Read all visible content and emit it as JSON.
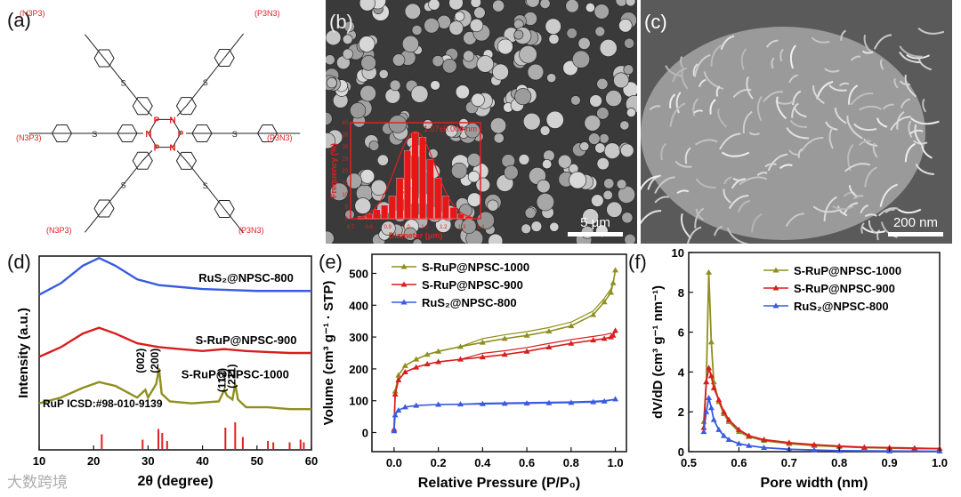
{
  "panels": {
    "a": "(a)",
    "b": "(b)",
    "c": "(c)",
    "d": "(d)",
    "e": "(e)",
    "f": "(f)"
  },
  "structure": {
    "n3p3": "(N",
    "p3n3": "(P",
    "groups": [
      "(N3P3)",
      "(P3N3)",
      "(N3P3)",
      "(P3N3)",
      "(N3P3)",
      "(P3N3)"
    ],
    "ring_atoms": [
      "N",
      "P",
      "N",
      "P",
      "N",
      "P"
    ]
  },
  "sem_b": {
    "scalebar": "5 μm",
    "inset_label": "1.07±0.004 nm",
    "inset_xlabel": "Diameter (μm)",
    "inset_ylabel": "Frequency (%)",
    "inset_xticks": [
      "0.7",
      "0.8",
      "0.9",
      "1.0",
      "1.1",
      "1.2",
      "1.3",
      "1.4"
    ],
    "inset_yticks": [
      "0",
      "5",
      "10",
      "15",
      "20",
      "25",
      "30",
      "35",
      "40"
    ]
  },
  "sem_c": {
    "scalebar": "200 nm"
  },
  "watermark": "大数跨境",
  "colors": {
    "olive": "#8f8f1f",
    "red": "#d81e1e",
    "blue": "#3a5be0",
    "stick": "#e02020"
  },
  "chart_data": [
    {
      "type": "line",
      "panel": "d",
      "xlabel": "2θ (degree)",
      "ylabel": "Intensity (a.u.)",
      "xlim": [
        10,
        60
      ],
      "xticks": [
        "10",
        "20",
        "30",
        "40",
        "50",
        "60"
      ],
      "series": [
        {
          "name": "RuS2@NPSC-800",
          "x": [
            10,
            14,
            18,
            21,
            24,
            28,
            32,
            36,
            40,
            45,
            50,
            55,
            60
          ],
          "y": [
            0.8,
            0.86,
            0.95,
            0.99,
            0.95,
            0.88,
            0.85,
            0.84,
            0.83,
            0.825,
            0.82,
            0.82,
            0.82
          ]
        },
        {
          "name": "S-RuP@NPSC-900",
          "x": [
            10,
            14,
            18,
            21,
            24,
            28,
            32,
            36,
            40,
            44,
            48,
            52,
            56,
            60
          ],
          "y": [
            0.48,
            0.53,
            0.6,
            0.63,
            0.6,
            0.55,
            0.53,
            0.52,
            0.51,
            0.52,
            0.51,
            0.505,
            0.5,
            0.5
          ]
        },
        {
          "name": "S-RuP@NPSC-1000",
          "x": [
            10,
            14,
            18,
            21,
            24,
            28,
            29.5,
            30,
            31.5,
            32,
            32.5,
            34,
            38,
            43,
            44,
            44.5,
            45.5,
            46,
            46.5,
            48,
            52,
            56,
            60
          ],
          "y": [
            0.24,
            0.27,
            0.32,
            0.35,
            0.33,
            0.27,
            0.31,
            0.27,
            0.34,
            0.42,
            0.29,
            0.25,
            0.24,
            0.25,
            0.31,
            0.28,
            0.26,
            0.34,
            0.26,
            0.22,
            0.22,
            0.21,
            0.21
          ]
        }
      ],
      "peak_labels": [
        {
          "text": "(002)",
          "x": 29.3
        },
        {
          "text": "(200)",
          "x": 31.9
        },
        {
          "text": "(112)",
          "x": 44.2
        },
        {
          "text": "(211)",
          "x": 46.0
        }
      ],
      "reference": {
        "label": "RuP  ICSD:#98-010-9139",
        "x": [
          21.5,
          29.0,
          31.9,
          32.6,
          33.5,
          44.2,
          46.0,
          47.4,
          52.0,
          53.0,
          56.0,
          58.0,
          58.6
        ],
        "h": [
          0.55,
          0.35,
          0.75,
          0.6,
          0.3,
          0.8,
          1.0,
          0.45,
          0.3,
          0.25,
          0.25,
          0.35,
          0.25
        ]
      },
      "labels": [
        "RuS₂@NPSC-800",
        "S-RuP@NPSC-900",
        "S-RuP@NPSC-1000"
      ]
    },
    {
      "type": "line",
      "panel": "e",
      "xlabel": "Relative Pressure (P/P₀)",
      "ylabel": "Volume (cm³ g⁻¹ · STP)",
      "xlim": [
        -0.1,
        1.05
      ],
      "ylim": [
        -60,
        560
      ],
      "xticks": [
        "0.0",
        "0.2",
        "0.4",
        "0.6",
        "0.8",
        "1.0"
      ],
      "yticks": [
        "0",
        "100",
        "200",
        "300",
        "400",
        "500"
      ],
      "series": [
        {
          "name": "S-RuP@NPSC-1000",
          "x": [
            0,
            0.005,
            0.02,
            0.05,
            0.1,
            0.15,
            0.2,
            0.3,
            0.4,
            0.5,
            0.6,
            0.7,
            0.8,
            0.9,
            0.95,
            0.98,
            0.99,
            1.0
          ],
          "y": [
            10,
            130,
            180,
            210,
            230,
            245,
            255,
            270,
            283,
            295,
            305,
            318,
            335,
            370,
            410,
            440,
            470,
            510
          ]
        },
        {
          "name": "S-RuP@NPSC-900",
          "x": [
            0,
            0.005,
            0.02,
            0.05,
            0.1,
            0.15,
            0.2,
            0.3,
            0.4,
            0.5,
            0.6,
            0.7,
            0.8,
            0.9,
            0.95,
            0.98,
            0.99,
            1.0
          ],
          "y": [
            10,
            120,
            165,
            190,
            205,
            215,
            222,
            230,
            237,
            245,
            255,
            268,
            280,
            290,
            295,
            300,
            305,
            320
          ]
        },
        {
          "name": "RuS2@NPSC-800",
          "x": [
            0,
            0.005,
            0.02,
            0.05,
            0.1,
            0.2,
            0.3,
            0.4,
            0.5,
            0.6,
            0.7,
            0.8,
            0.9,
            0.95,
            1.0
          ],
          "y": [
            5,
            55,
            70,
            80,
            85,
            88,
            89,
            90,
            91,
            92,
            93,
            94,
            96,
            98,
            105
          ]
        }
      ],
      "legend": [
        "S-RuP@NPSC-1000",
        "S-RuP@NPSC-900",
        "RuS₂@NPSC-800"
      ]
    },
    {
      "type": "line",
      "panel": "f",
      "xlabel": "Pore width (nm)",
      "ylabel": "dV/dD (cm³ g⁻¹ nm⁻¹)",
      "xlim": [
        0.5,
        1.0
      ],
      "ylim": [
        0,
        10
      ],
      "xticks": [
        "0.5",
        "0.6",
        "0.7",
        "0.8",
        "0.9",
        "1.0"
      ],
      "yticks": [
        "0",
        "2",
        "4",
        "6",
        "8",
        "10"
      ],
      "series": [
        {
          "name": "S-RuP@NPSC-1000",
          "x": [
            0.53,
            0.535,
            0.54,
            0.545,
            0.55,
            0.56,
            0.57,
            0.58,
            0.6,
            0.62,
            0.65,
            0.7,
            0.75,
            0.8,
            0.85,
            0.9,
            0.95,
            1.0
          ],
          "y": [
            1.5,
            3.5,
            9.0,
            5.5,
            3.5,
            2.5,
            1.9,
            1.5,
            1.0,
            0.75,
            0.55,
            0.4,
            0.3,
            0.25,
            0.2,
            0.18,
            0.15,
            0.15
          ]
        },
        {
          "name": "S-RuP@NPSC-900",
          "x": [
            0.53,
            0.535,
            0.54,
            0.545,
            0.55,
            0.56,
            0.57,
            0.58,
            0.6,
            0.62,
            0.65,
            0.7,
            0.75,
            0.8,
            0.85,
            0.9,
            0.95,
            1.0
          ],
          "y": [
            1.2,
            3.5,
            4.2,
            3.8,
            3.2,
            2.6,
            2.0,
            1.6,
            1.1,
            0.8,
            0.6,
            0.45,
            0.35,
            0.28,
            0.22,
            0.2,
            0.18,
            0.15
          ]
        },
        {
          "name": "RuS2@NPSC-800",
          "x": [
            0.53,
            0.535,
            0.54,
            0.545,
            0.55,
            0.56,
            0.57,
            0.58,
            0.6,
            0.62,
            0.65,
            0.7,
            0.75,
            0.8,
            0.9,
            1.0
          ],
          "y": [
            1.0,
            2.0,
            2.7,
            2.2,
            1.6,
            1.1,
            0.8,
            0.6,
            0.4,
            0.3,
            0.2,
            0.12,
            0.08,
            0.05,
            0.03,
            0.02
          ]
        }
      ],
      "legend": [
        "S-RuP@NPSC-1000",
        "S-RuP@NPSC-900",
        "RuS₂@NPSC-800"
      ]
    }
  ]
}
